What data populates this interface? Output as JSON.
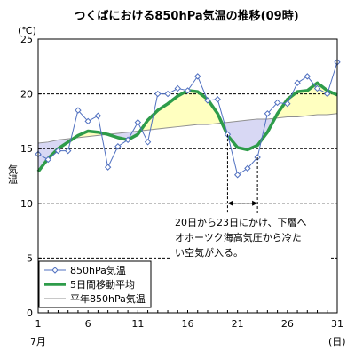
{
  "chart_data": {
    "type": "line",
    "title": "つくばにおける850hPa気温の推移(09時)",
    "y_unit": "(℃)",
    "ylabel": "気温",
    "x_unit": "(日)",
    "x_month": "7月",
    "xlim": [
      1,
      31
    ],
    "ylim": [
      0,
      25
    ],
    "yticks": [
      0,
      5,
      10,
      15,
      20,
      25
    ],
    "xticks": [
      1,
      6,
      11,
      16,
      21,
      26,
      31
    ],
    "x": [
      1,
      2,
      3,
      4,
      5,
      6,
      7,
      8,
      9,
      10,
      11,
      12,
      13,
      14,
      15,
      16,
      17,
      18,
      19,
      20,
      21,
      22,
      23,
      24,
      25,
      26,
      27,
      28,
      29,
      30,
      31
    ],
    "series": [
      {
        "name": "850hPa気温",
        "values": [
          14.5,
          14.0,
          14.8,
          14.8,
          18.5,
          17.5,
          18.0,
          13.3,
          15.2,
          15.8,
          17.4,
          15.6,
          20.0,
          20.0,
          20.5,
          20.3,
          21.6,
          19.4,
          19.5,
          16.3,
          12.6,
          13.2,
          14.2,
          18.2,
          19.2,
          19.1,
          21.0,
          21.6,
          20.5,
          20.0,
          22.9
        ],
        "color": "#5070c0"
      },
      {
        "name": "5日間移動平均",
        "values": [
          12.9,
          14.1,
          15.0,
          15.6,
          16.2,
          16.6,
          16.5,
          16.3,
          16.0,
          15.8,
          16.3,
          17.6,
          18.5,
          19.1,
          19.8,
          20.3,
          20.2,
          19.5,
          18.2,
          16.2,
          15.1,
          14.9,
          15.3,
          16.5,
          18.2,
          19.5,
          20.2,
          20.3,
          21.0,
          20.3,
          19.9
        ],
        "color": "#2e9c4a"
      },
      {
        "name": "平年850hPa気温",
        "values": [
          15.5,
          15.6,
          15.8,
          15.9,
          16.0,
          16.1,
          16.2,
          16.3,
          16.4,
          16.5,
          16.6,
          16.7,
          16.8,
          16.9,
          17.0,
          17.1,
          17.2,
          17.2,
          17.3,
          17.4,
          17.5,
          17.6,
          17.7,
          17.7,
          17.8,
          17.9,
          17.9,
          18.0,
          18.1,
          18.1,
          18.2
        ],
        "color": "#909090"
      }
    ],
    "fill_above_color": "#ffffc0",
    "fill_below_color": "#d8d8f4",
    "grid": "horizontal-dashed",
    "legend_position": "bottom-left",
    "annotation": {
      "lines": [
        "20日から23日にかけ、下層へ",
        "オホーツク海高気圧から冷た",
        "い空気が入る。"
      ],
      "range": [
        20,
        23
      ]
    }
  }
}
